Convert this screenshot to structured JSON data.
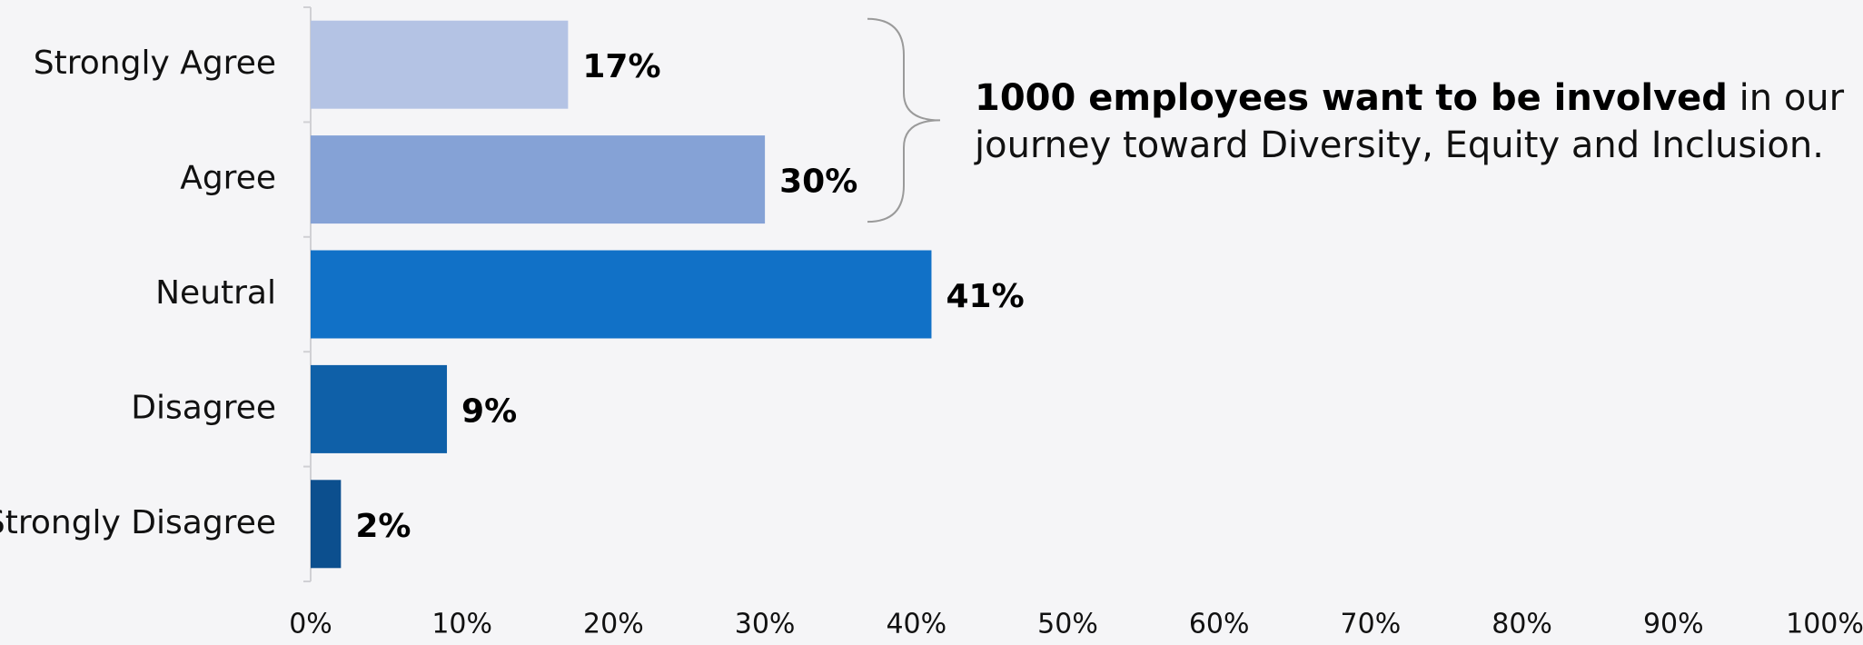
{
  "chart_data": {
    "type": "bar",
    "orientation": "horizontal",
    "categories": [
      "Strongly Agree",
      "Agree",
      "Neutral",
      "Disagree",
      "Strongly Disagree"
    ],
    "values": [
      17,
      30,
      41,
      9,
      2
    ],
    "value_labels": [
      "17%",
      "30%",
      "41%",
      "9%",
      "2%"
    ],
    "bar_colors": [
      "#b4c3e4",
      "#85a2d6",
      "#1171c7",
      "#0f60a8",
      "#0c4f8e"
    ],
    "xlim": [
      0,
      100
    ],
    "xticks": [
      "0%",
      "10%",
      "20%",
      "30%",
      "40%",
      "50%",
      "60%",
      "70%",
      "80%",
      "90%",
      "100%"
    ],
    "grid": false,
    "annotation": {
      "bold_text": "1000 employees want to be involved",
      "text": " in our journey toward Diversity, Equity and Inclusion.",
      "brace_spans": [
        "Strongly Agree",
        "Agree"
      ]
    }
  }
}
